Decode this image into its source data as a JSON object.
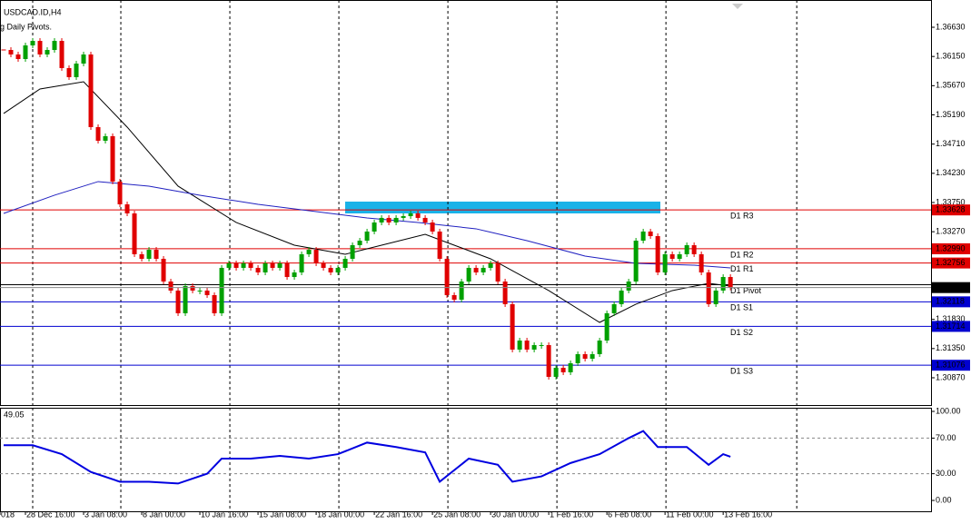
{
  "chart_data": {
    "type": "candlestick",
    "title": "USDCAD.ID,H4",
    "subtitle": "g Daily Pivots.",
    "up_color": "#00a000",
    "down_color": "#e00000",
    "close": [
      1.36257,
      1.36183,
      1.36108,
      1.36332,
      1.36406,
      1.36183,
      1.36257,
      1.36406,
      1.35959,
      1.3581,
      1.36033,
      1.36183,
      1.34989,
      1.34765,
      1.3484,
      1.34094,
      1.3372,
      1.33571,
      1.329,
      1.32825,
      1.32974,
      1.32825,
      1.32452,
      1.32303,
      1.3193,
      1.32377,
      1.32303,
      1.32303,
      1.32228,
      1.3193,
      1.32676,
      1.3275,
      1.32676,
      1.3275,
      1.32676,
      1.32601,
      1.3275,
      1.32676,
      1.3275,
      1.32526,
      1.32601,
      1.329,
      1.32974,
      1.3275,
      1.32676,
      1.32601,
      1.32676,
      1.32825,
      1.33049,
      1.33123,
      1.33273,
      1.33422,
      1.33497,
      1.33422,
      1.33497,
      1.33526,
      1.33571,
      1.33497,
      1.33422,
      1.33273,
      1.32825,
      1.32228,
      1.32153,
      1.32452,
      1.32676,
      1.32601,
      1.32676,
      1.3275,
      1.32452,
      1.32079,
      1.31333,
      1.31482,
      1.31333,
      1.31407,
      1.31407,
      1.30885,
      1.31034,
      1.3096,
      1.31109,
      1.31258,
      1.31183,
      1.31258,
      1.31482,
      1.3193,
      1.32079,
      1.32303,
      1.32452,
      1.33123,
      1.33273,
      1.33198,
      1.32601,
      1.329,
      1.32825,
      1.329,
      1.33049,
      1.329,
      1.32601,
      1.32079,
      1.32303,
      1.32526,
      1.32352
    ],
    "xlim": [
      -0.5,
      127.6
    ],
    "ylim": [
      1.30422,
      1.37078
    ],
    "yticks": [
      {
        "value": 1.3663,
        "label": "1.36630"
      },
      {
        "value": 1.3615,
        "label": "1.36150"
      },
      {
        "value": 1.3567,
        "label": "1.35670"
      },
      {
        "value": 1.3519,
        "label": "1.35190"
      },
      {
        "value": 1.3471,
        "label": "1.34710"
      },
      {
        "value": 1.3423,
        "label": "1.34230"
      },
      {
        "value": 1.3375,
        "label": "1.33750"
      },
      {
        "value": 1.3327,
        "label": "1.33270"
      },
      {
        "value": 1.3183,
        "label": "1.31830"
      },
      {
        "value": 1.3135,
        "label": "1.31350"
      },
      {
        "value": 1.3087,
        "label": "1.30870"
      }
    ],
    "xticks": [
      {
        "value": -0.5,
        "label": "018"
      },
      {
        "value": 3,
        "label": "28 Dec 16:00"
      },
      {
        "value": 11,
        "label": "3 Jan 08:00"
      },
      {
        "value": 19,
        "label": "8 Jan 00:00"
      },
      {
        "value": 27,
        "label": "10 Jan 16:00"
      },
      {
        "value": 35,
        "label": "15 Jan 08:00"
      },
      {
        "value": 43,
        "label": "18 Jan 00:00"
      },
      {
        "value": 51,
        "label": "22 Jan 16:00"
      },
      {
        "value": 59,
        "label": "25 Jan 08:00"
      },
      {
        "value": 67,
        "label": "30 Jan 00:00"
      },
      {
        "value": 75,
        "label": "1 Feb 16:00"
      },
      {
        "value": 83,
        "label": "6 Feb 08:00"
      },
      {
        "value": 91,
        "label": "11 Feb 00:00"
      },
      {
        "value": 99,
        "label": "13 Feb 16:00"
      }
    ],
    "xgrid": [
      4,
      16.125,
      31.125,
      46.125,
      61.125,
      76.125,
      91.125,
      109.125
    ],
    "series": [
      {
        "color": "#000000",
        "x": [
          0,
          5,
          11,
          17,
          24,
          32,
          40,
          47,
          52,
          58,
          62,
          67,
          75,
          82,
          87,
          92,
          97,
          100
        ],
        "values": [
          1.35213,
          1.35616,
          1.35735,
          1.34989,
          1.34019,
          1.33422,
          1.33049,
          1.329,
          1.33049,
          1.33228,
          1.33049,
          1.32825,
          1.32303,
          1.3178,
          1.32079,
          1.32303,
          1.32422,
          1.32377
        ]
      },
      {
        "color": "#2020c0",
        "x": [
          0,
          7,
          13,
          20,
          27,
          35,
          42,
          50,
          57,
          65,
          72,
          80,
          87,
          95,
          100
        ],
        "values": [
          1.33571,
          1.3387,
          1.34094,
          1.34019,
          1.3387,
          1.3372,
          1.33616,
          1.33497,
          1.33422,
          1.33318,
          1.33123,
          1.3287,
          1.3275,
          1.3272,
          1.32676
        ]
      }
    ],
    "levels": [
      {
        "name": "D1 R3",
        "value": 1.33628,
        "color": "#e00000"
      },
      {
        "name": "D1 R2",
        "value": 1.3299,
        "label": "1.32990",
        "color": "#e00000"
      },
      {
        "name": "D1 R1",
        "value": 1.32756,
        "color": "#e00000"
      },
      {
        "name": "D1 Pivot",
        "value": 1.324,
        "color": "#000000"
      },
      {
        "name": "D1 S1",
        "value": 1.32118,
        "color": "#0000d0"
      },
      {
        "name": "D1 S2",
        "value": 1.31714,
        "color": "#0000d0"
      },
      {
        "name": "D1 S3",
        "value": 1.31076,
        "color": "#0000d0"
      }
    ],
    "rsi": {
      "color": "#0000e0",
      "x": [
        0,
        4,
        8,
        12,
        16,
        20,
        24,
        28,
        30,
        34,
        38,
        42,
        46,
        50,
        54,
        58,
        60,
        64,
        68,
        70,
        74,
        78,
        82,
        86,
        88,
        90,
        94,
        97,
        99,
        100
      ],
      "values": [
        62,
        62,
        52,
        32,
        21,
        21,
        19,
        30,
        47,
        47,
        50,
        47,
        52,
        65,
        60,
        54,
        21,
        47,
        40,
        21,
        27,
        42,
        52,
        70,
        78,
        60,
        60,
        40,
        52,
        49.05
      ],
      "ylim": [
        -12.2,
        104.1
      ],
      "yticks": [
        {
          "value": 100,
          "label": "100.00"
        },
        {
          "value": 70,
          "label": "70.00"
        },
        {
          "value": 30,
          "label": "30.00"
        },
        {
          "value": 0,
          "label": "0.00"
        }
      ],
      "levels": [
        70,
        30
      ]
    }
  }
}
